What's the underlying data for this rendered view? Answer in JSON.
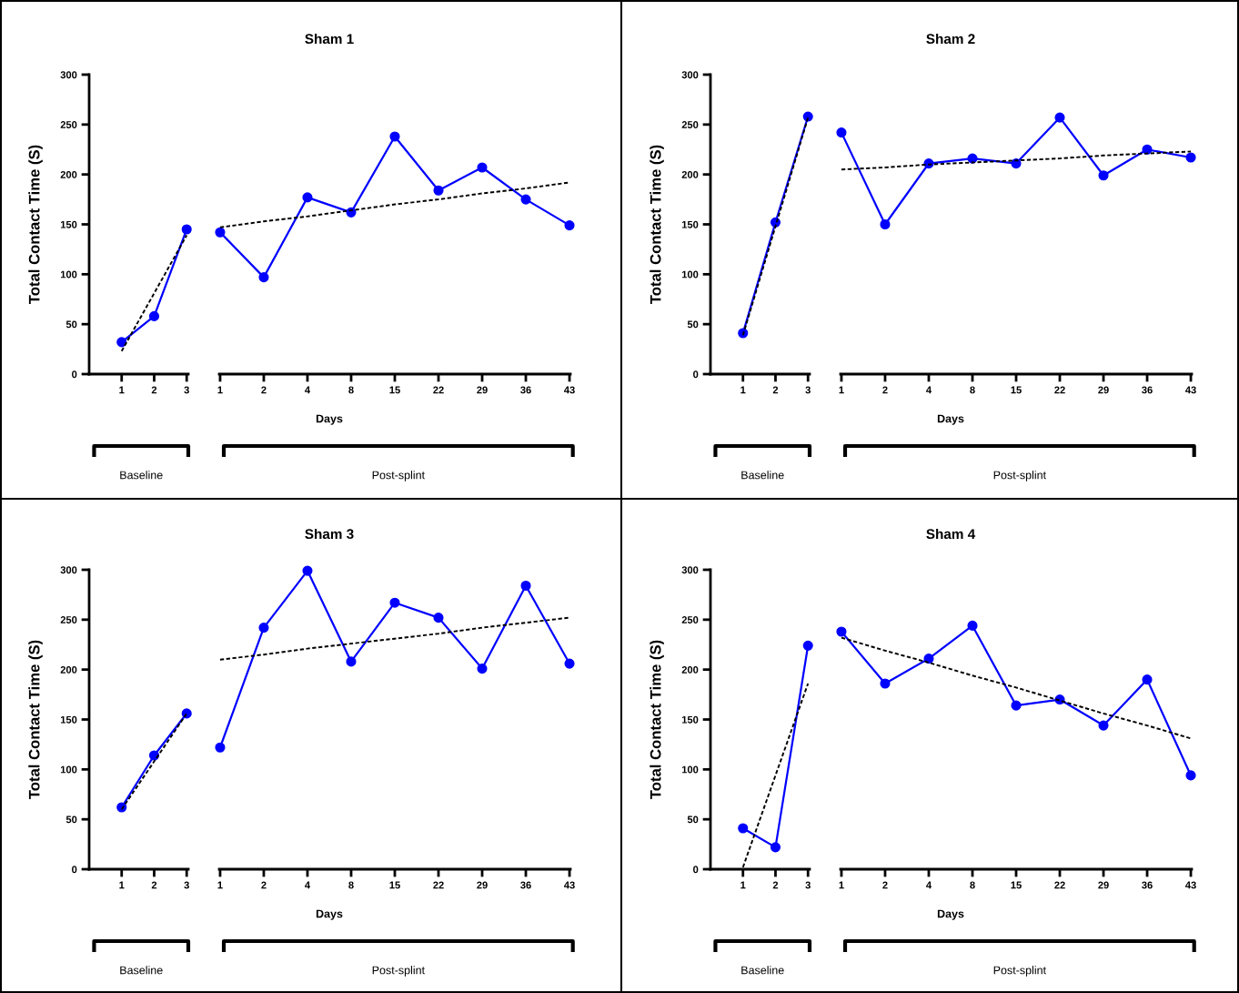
{
  "chart_data": [
    {
      "type": "line",
      "ylabel": "Total Contact Time (S)",
      "categories": [
        "1",
        "2",
        "3"
      ],
      "marker": "circle",
      "ylim": [
        0,
        300
      ],
      "yticks": [
        0,
        50,
        100,
        150,
        200,
        250,
        300
      ],
      "annotations": [
        "Baseline"
      ],
      "series": [
        {
          "color": "#0000ff",
          "values": [
            32,
            58,
            145
          ]
        },
        {
          "type": "line",
          "color": "#000000",
          "line_style": "dashed",
          "marker": "none",
          "values": [
            23,
            81,
            139
          ]
        }
      ]
    },
    {
      "type": "line",
      "title": "Sham 1",
      "xlabel": "Days",
      "categories": [
        "1",
        "2",
        "4",
        "8",
        "15",
        "22",
        "29",
        "36",
        "43"
      ],
      "marker": "circle",
      "ylim": [
        0,
        300
      ],
      "tick_labels": "x",
      "annotations": [
        "Post-splint"
      ],
      "series": [
        {
          "color": "#0000ff",
          "values": [
            142,
            97,
            177,
            162,
            238,
            184,
            207,
            175,
            149
          ]
        },
        {
          "type": "line",
          "color": "#000000",
          "line_style": "dashed",
          "marker": "none",
          "values": [
            147,
            153,
            158,
            164,
            170,
            175,
            181,
            186,
            192
          ]
        }
      ]
    },
    {
      "type": "line",
      "ylabel": "Total Contact Time (S)",
      "categories": [
        "1",
        "2",
        "3"
      ],
      "marker": "circle",
      "ylim": [
        0,
        300
      ],
      "yticks": [
        0,
        50,
        100,
        150,
        200,
        250,
        300
      ],
      "annotations": [
        "Baseline"
      ],
      "series": [
        {
          "color": "#0000ff",
          "values": [
            41,
            152,
            258
          ]
        },
        {
          "type": "line",
          "color": "#000000",
          "line_style": "dashed",
          "marker": "none",
          "values": [
            39,
            148,
            257
          ]
        }
      ]
    },
    {
      "type": "line",
      "title": "Sham 2",
      "xlabel": "Days",
      "categories": [
        "1",
        "2",
        "4",
        "8",
        "15",
        "22",
        "29",
        "36",
        "43"
      ],
      "marker": "circle",
      "ylim": [
        0,
        300
      ],
      "tick_labels": "x",
      "annotations": [
        "Post-splint"
      ],
      "series": [
        {
          "color": "#0000ff",
          "values": [
            242,
            150,
            211,
            216,
            211,
            257,
            199,
            225,
            217
          ]
        },
        {
          "type": "line",
          "color": "#000000",
          "line_style": "dashed",
          "marker": "none",
          "values": [
            205,
            207,
            210,
            212,
            214,
            216,
            219,
            221,
            223
          ]
        }
      ]
    },
    {
      "type": "line",
      "ylabel": "Total Contact Time (S)",
      "categories": [
        "1",
        "2",
        "3"
      ],
      "marker": "circle",
      "ylim": [
        0,
        300
      ],
      "yticks": [
        0,
        50,
        100,
        150,
        200,
        250,
        300
      ],
      "annotations": [
        "Baseline"
      ],
      "series": [
        {
          "color": "#0000ff",
          "values": [
            62,
            114,
            156
          ]
        },
        {
          "type": "line",
          "color": "#000000",
          "line_style": "dashed",
          "marker": "none",
          "values": [
            60,
            108,
            156
          ]
        }
      ]
    },
    {
      "type": "line",
      "title": "Sham 3",
      "xlabel": "Days",
      "categories": [
        "1",
        "2",
        "4",
        "8",
        "15",
        "22",
        "29",
        "36",
        "43"
      ],
      "marker": "circle",
      "ylim": [
        0,
        300
      ],
      "tick_labels": "x",
      "annotations": [
        "Post-splint"
      ],
      "series": [
        {
          "color": "#0000ff",
          "values": [
            122,
            242,
            299,
            208,
            267,
            252,
            201,
            284,
            206
          ]
        },
        {
          "type": "line",
          "color": "#000000",
          "line_style": "dashed",
          "marker": "none",
          "values": [
            210,
            215,
            221,
            226,
            231,
            236,
            242,
            247,
            252
          ]
        }
      ]
    },
    {
      "type": "line",
      "ylabel": "Total Contact Time (S)",
      "categories": [
        "1",
        "2",
        "3"
      ],
      "marker": "circle",
      "ylim": [
        0,
        300
      ],
      "yticks": [
        0,
        50,
        100,
        150,
        200,
        250,
        300
      ],
      "annotations": [
        "Baseline"
      ],
      "series": [
        {
          "color": "#0000ff",
          "values": [
            41,
            22,
            224
          ]
        },
        {
          "type": "line",
          "color": "#000000",
          "line_style": "dashed",
          "marker": "none",
          "values": [
            2,
            94,
            186
          ]
        }
      ]
    },
    {
      "type": "line",
      "title": "Sham 4",
      "xlabel": "Days",
      "categories": [
        "1",
        "2",
        "4",
        "8",
        "15",
        "22",
        "29",
        "36",
        "43"
      ],
      "marker": "circle",
      "ylim": [
        0,
        300
      ],
      "tick_labels": "x",
      "annotations": [
        "Post-splint"
      ],
      "series": [
        {
          "color": "#0000ff",
          "values": [
            238,
            186,
            211,
            244,
            164,
            170,
            144,
            190,
            94
          ]
        },
        {
          "type": "line",
          "color": "#000000",
          "line_style": "dashed",
          "marker": "none",
          "values": [
            232,
            219,
            207,
            194,
            182,
            169,
            156,
            144,
            131
          ]
        }
      ]
    }
  ]
}
